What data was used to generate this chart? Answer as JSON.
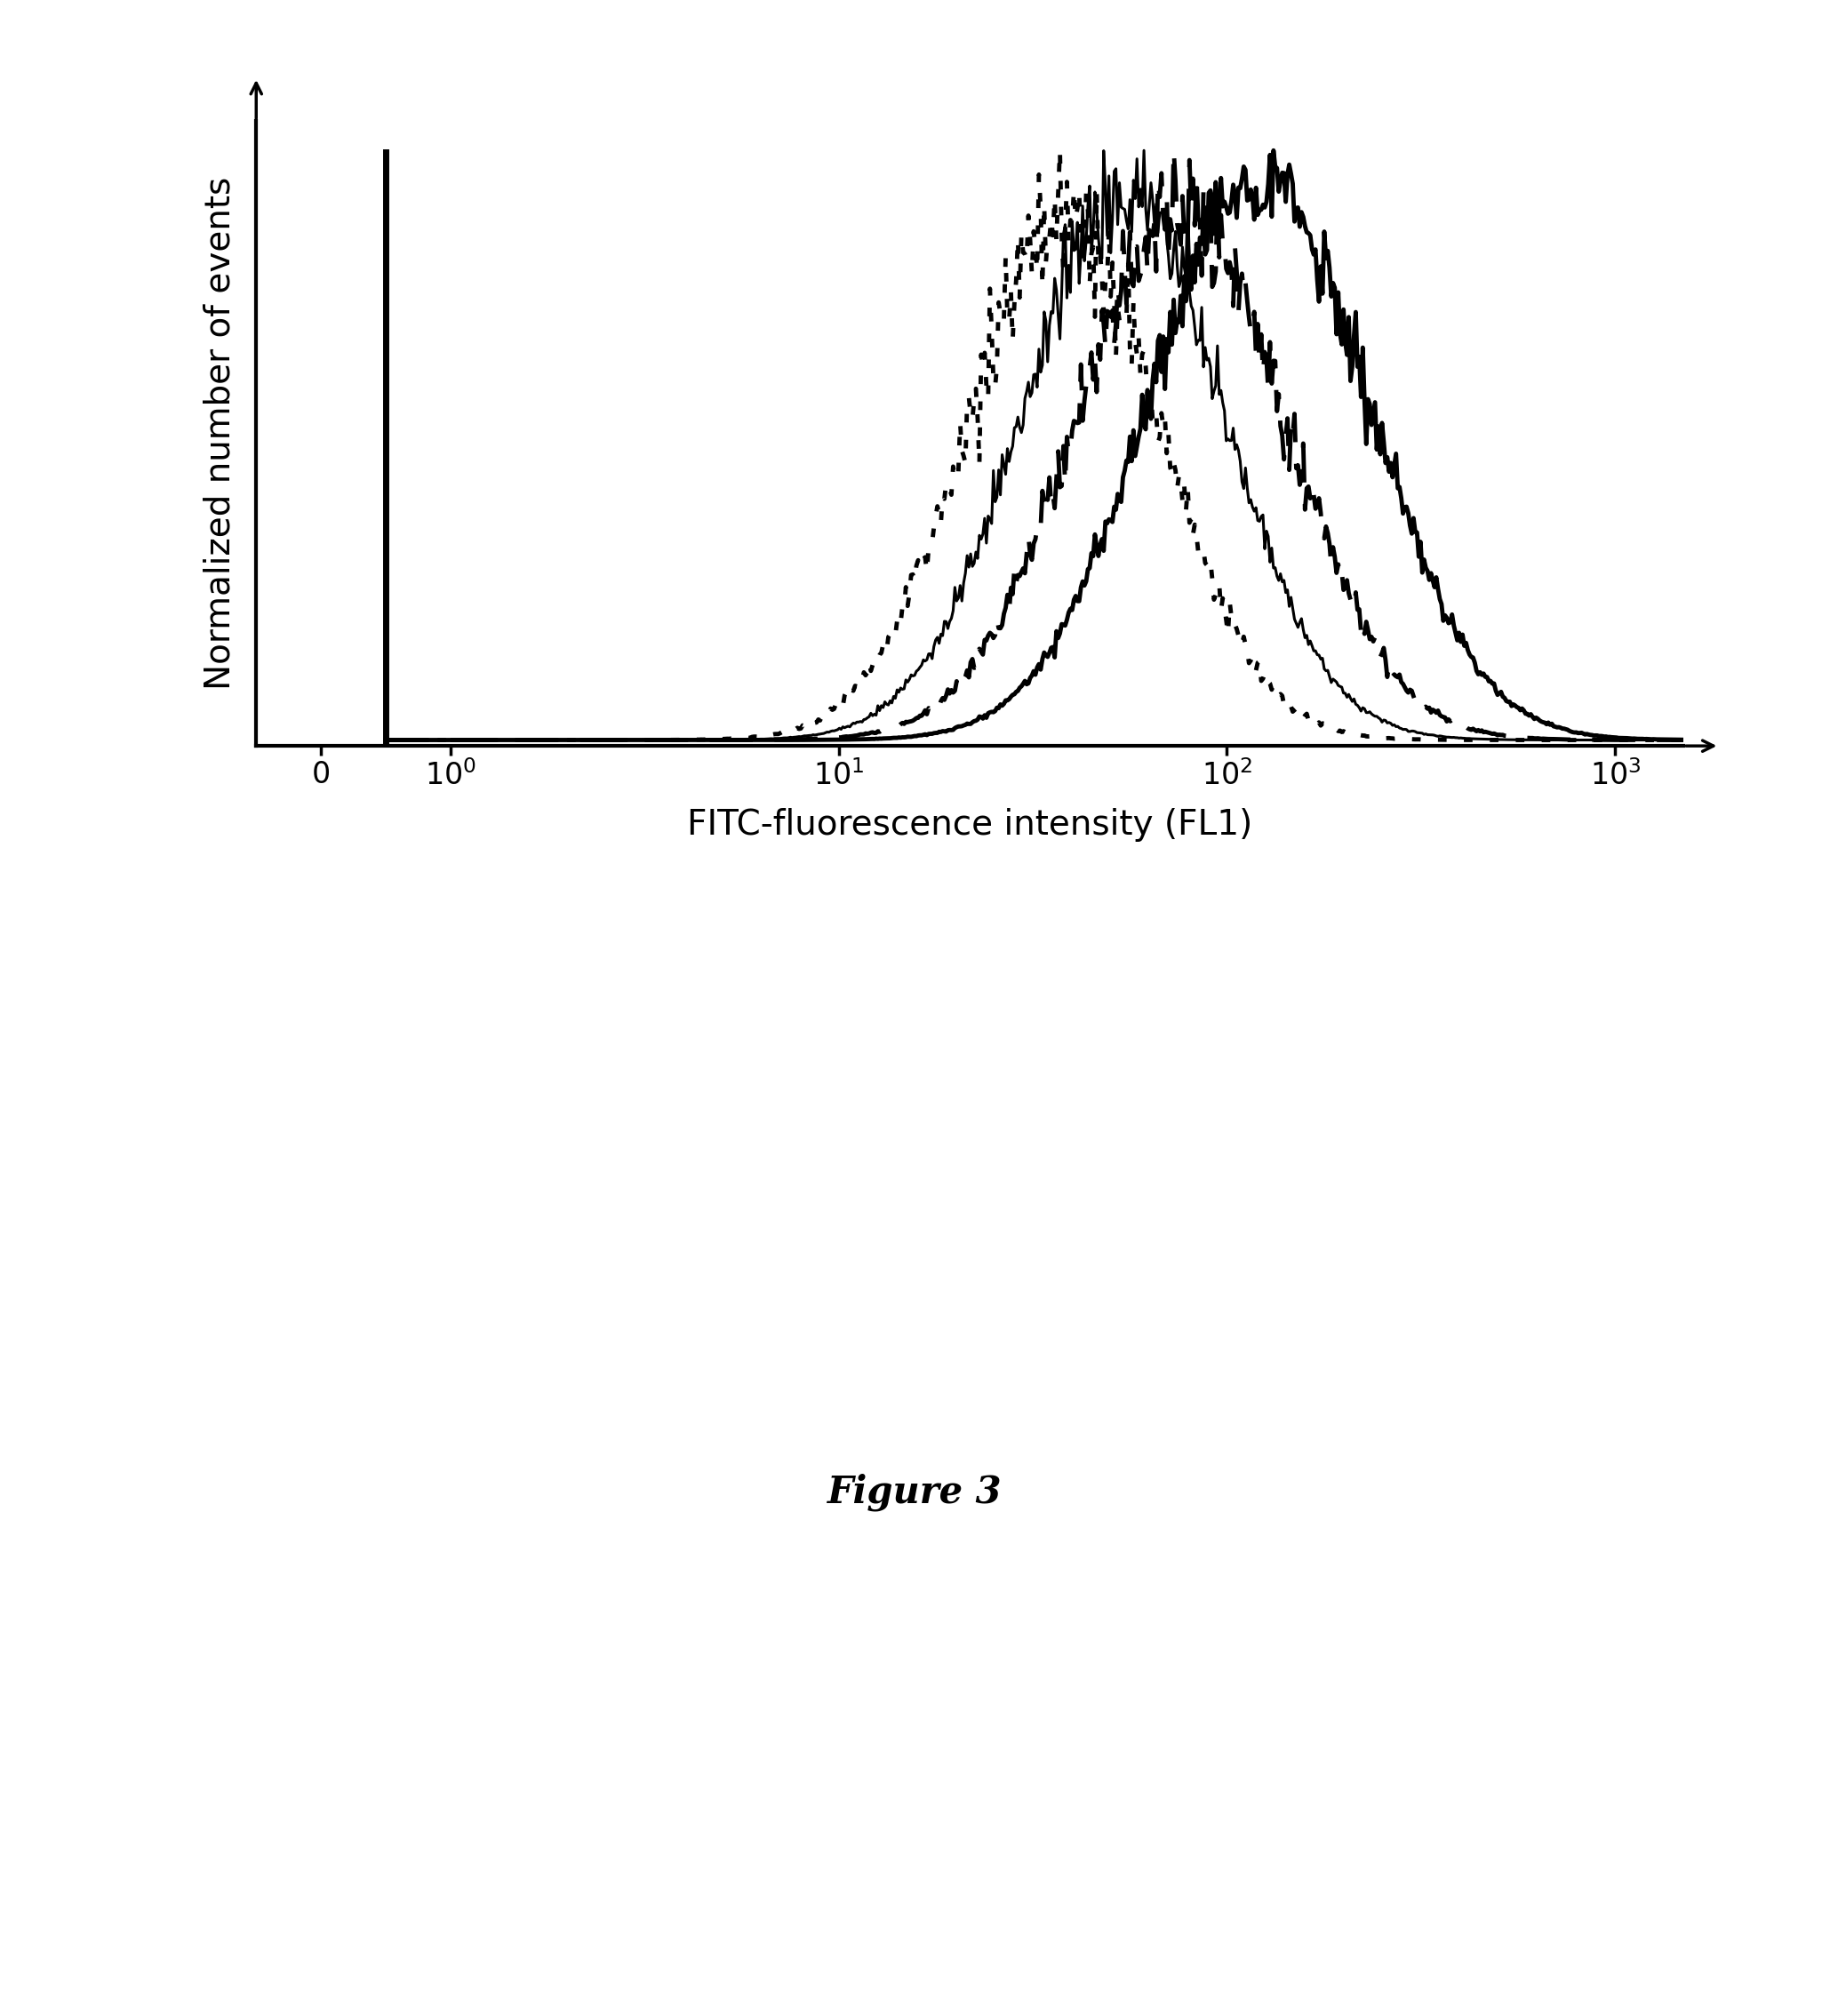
{
  "xlabel": "FITC-fluorescence intensity (FL1)",
  "ylabel": "Normalized number of events",
  "figure_caption": "Figure 3",
  "background_color": "#ffffff",
  "line_color": "#000000",
  "curves": [
    {
      "name": "solid_thick_right",
      "style": "solid",
      "linewidth": 3.5,
      "peak_log": 2.08,
      "sigma_log": 0.28,
      "noise_scale": 0.05,
      "seed": 10
    },
    {
      "name": "dashed_thick",
      "style": "dashed",
      "linewidth": 3.5,
      "peak_log": 1.88,
      "sigma_log": 0.27,
      "noise_scale": 0.06,
      "seed": 20
    },
    {
      "name": "solid_thin",
      "style": "solid",
      "linewidth": 2.2,
      "peak_log": 1.73,
      "sigma_log": 0.26,
      "noise_scale": 0.05,
      "seed": 30
    },
    {
      "name": "dotted_left",
      "style": "dotted",
      "linewidth": 3.5,
      "peak_log": 1.58,
      "sigma_log": 0.25,
      "noise_scale": 0.07,
      "seed": 40
    }
  ]
}
